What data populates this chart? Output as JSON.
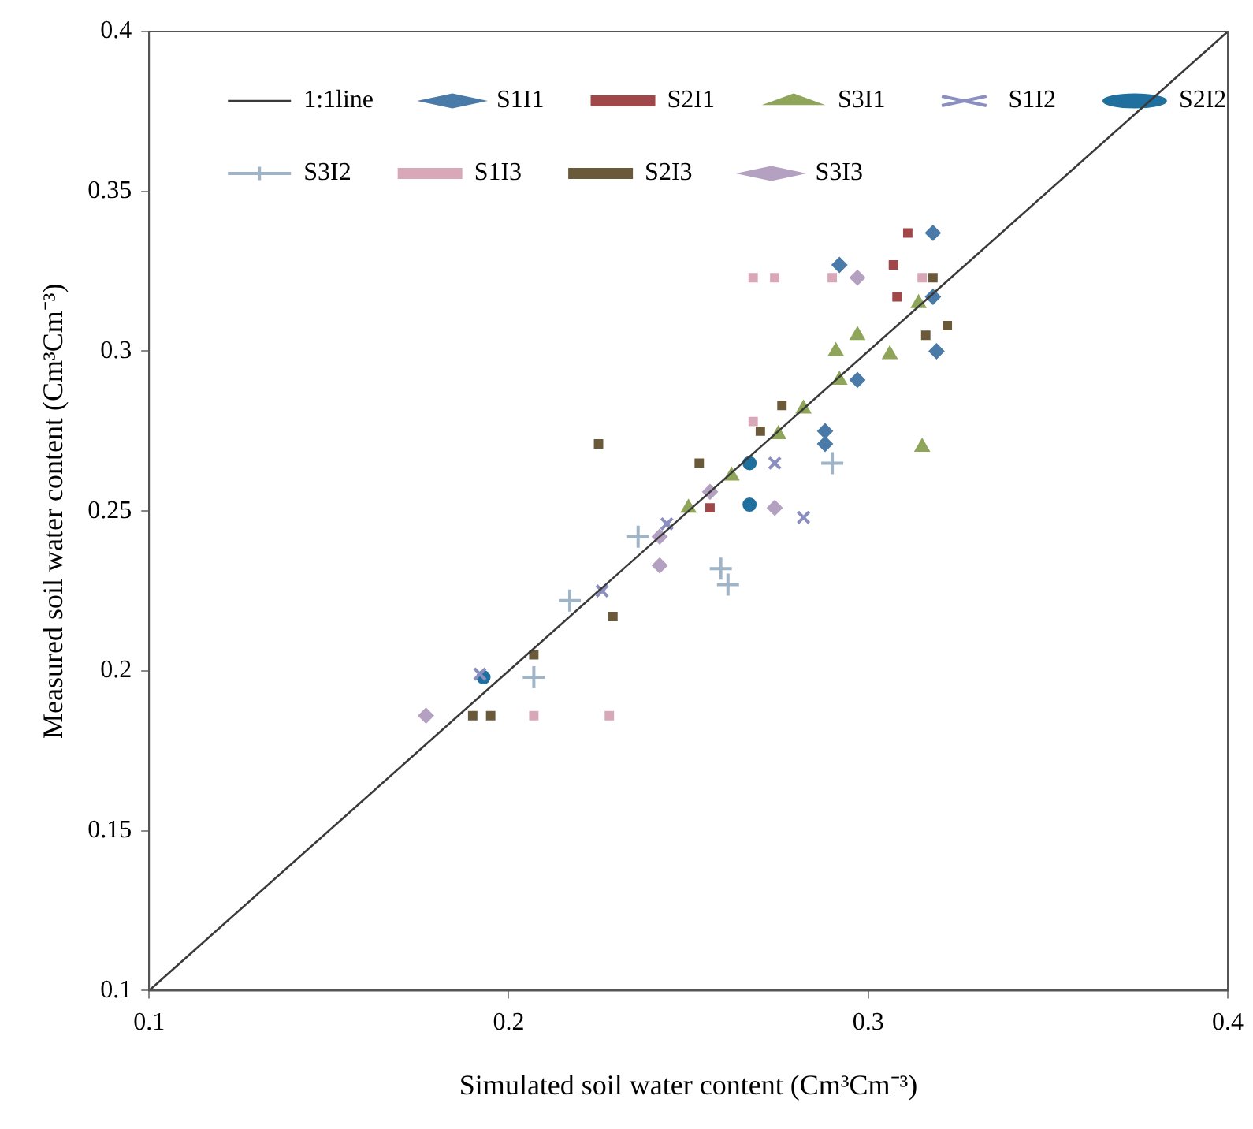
{
  "chart_data": {
    "type": "scatter",
    "xlabel": "Simulated soil water content (Cm³Cm⁻³)",
    "ylabel": "Measured soil water content (Cm³Cm⁻³)",
    "xlim": [
      0.1,
      0.4
    ],
    "ylim": [
      0.1,
      0.4
    ],
    "xticks": [
      0.1,
      0.2,
      0.3,
      0.4
    ],
    "yticks": [
      0.1,
      0.15,
      0.2,
      0.25,
      0.3,
      0.35,
      0.4
    ],
    "grid": false,
    "legend": "top left",
    "series": [
      {
        "name": "1:1line",
        "type": "line",
        "marker": "none",
        "color": "#3a3a3a",
        "x": [
          0.1,
          0.4
        ],
        "values": [
          0.1,
          0.4
        ]
      },
      {
        "name": "S1I1",
        "marker": "diamond",
        "color": "#4a7aa8",
        "x": [
          0.318,
          0.292,
          0.318,
          0.319,
          0.297,
          0.288,
          0.288
        ],
        "values": [
          0.337,
          0.327,
          0.317,
          0.3,
          0.291,
          0.275,
          0.271
        ]
      },
      {
        "name": "S2I1",
        "marker": "square",
        "color": "#a0474a",
        "x": [
          0.311,
          0.307,
          0.308,
          0.256
        ],
        "values": [
          0.337,
          0.327,
          0.317,
          0.251
        ]
      },
      {
        "name": "S3I1",
        "marker": "triangle",
        "color": "#8fa55a",
        "x": [
          0.314,
          0.297,
          0.291,
          0.306,
          0.292,
          0.282,
          0.275,
          0.262,
          0.25,
          0.315
        ],
        "values": [
          0.315,
          0.305,
          0.3,
          0.299,
          0.291,
          0.282,
          0.274,
          0.261,
          0.251,
          0.27
        ]
      },
      {
        "name": "S1I2",
        "marker": "cross",
        "color": "#8a8fc0",
        "x": [
          0.274,
          0.282,
          0.244,
          0.226,
          0.192
        ],
        "values": [
          0.265,
          0.248,
          0.246,
          0.225,
          0.199
        ]
      },
      {
        "name": "S2I2",
        "marker": "circle",
        "color": "#1f6f9f",
        "x": [
          0.267,
          0.267,
          0.193
        ],
        "values": [
          0.265,
          0.252,
          0.198
        ]
      },
      {
        "name": "S3I2",
        "marker": "plus",
        "color": "#a0b4c8",
        "x": [
          0.29,
          0.259,
          0.261,
          0.236,
          0.217,
          0.207
        ],
        "values": [
          0.265,
          0.232,
          0.227,
          0.242,
          0.222,
          0.198
        ]
      },
      {
        "name": "S1I3",
        "marker": "square",
        "color": "#d8a8b8",
        "x": [
          0.268,
          0.274,
          0.29,
          0.315,
          0.268,
          0.207,
          0.228
        ],
        "values": [
          0.323,
          0.323,
          0.323,
          0.323,
          0.278,
          0.186,
          0.186
        ]
      },
      {
        "name": "S2I3",
        "marker": "square",
        "color": "#6b5a3a",
        "x": [
          0.318,
          0.322,
          0.316,
          0.276,
          0.27,
          0.225,
          0.253,
          0.229,
          0.207,
          0.19,
          0.195
        ],
        "values": [
          0.323,
          0.308,
          0.305,
          0.283,
          0.275,
          0.271,
          0.265,
          0.217,
          0.205,
          0.186,
          0.186
        ]
      },
      {
        "name": "S3I3",
        "marker": "diamond",
        "color": "#b4a0c0",
        "x": [
          0.297,
          0.256,
          0.274,
          0.242,
          0.242,
          0.177
        ],
        "values": [
          0.323,
          0.256,
          0.251,
          0.242,
          0.233,
          0.186
        ]
      }
    ]
  }
}
